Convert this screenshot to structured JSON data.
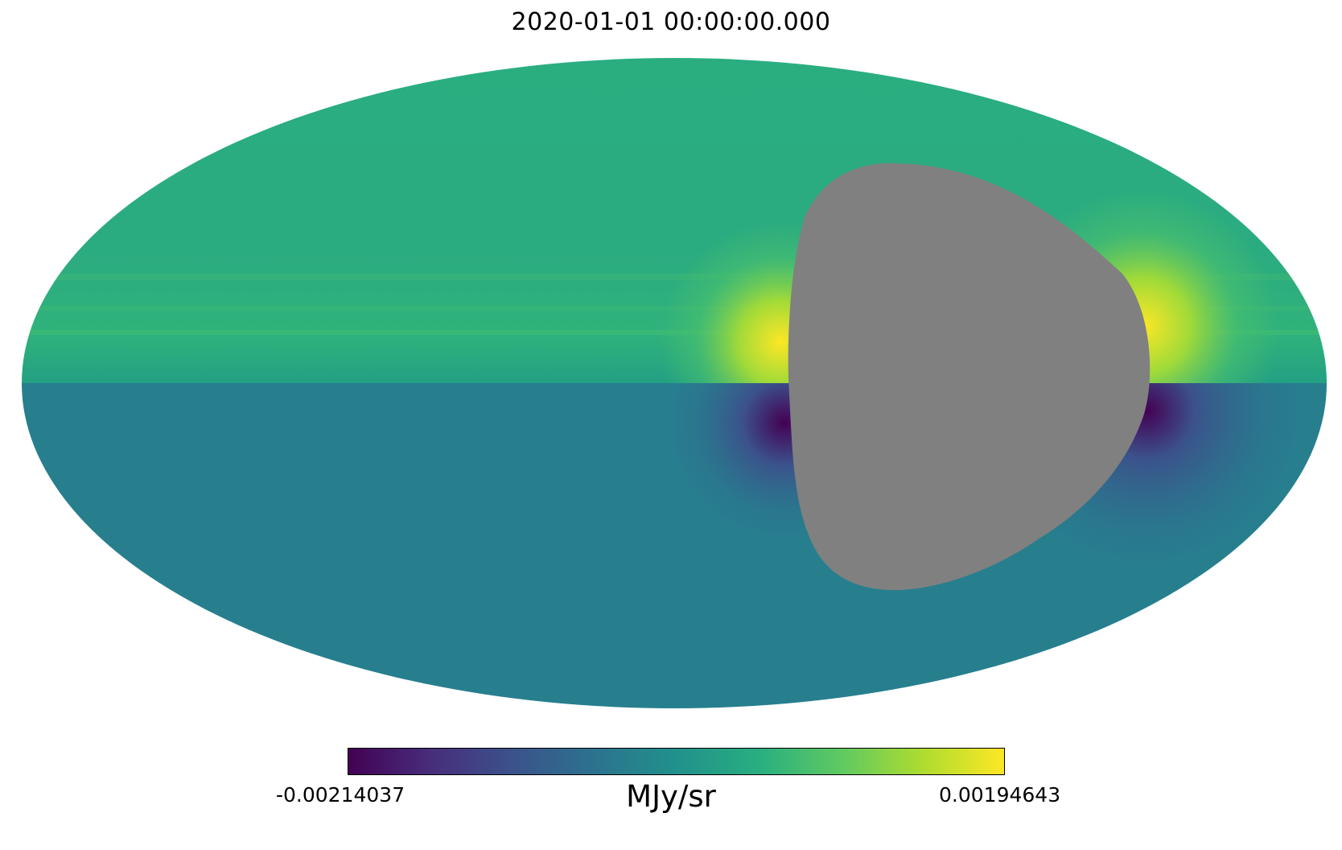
{
  "title": "2020-01-01 00:00:00.000",
  "colorbar": {
    "min_label": "-0.00214037",
    "max_label": "0.00194643",
    "unit": "MJy/sr",
    "min": -0.00214037,
    "max": 0.00194643,
    "colormap": "viridis"
  },
  "map": {
    "projection": "mollweide",
    "masked_color": "#808080"
  }
}
